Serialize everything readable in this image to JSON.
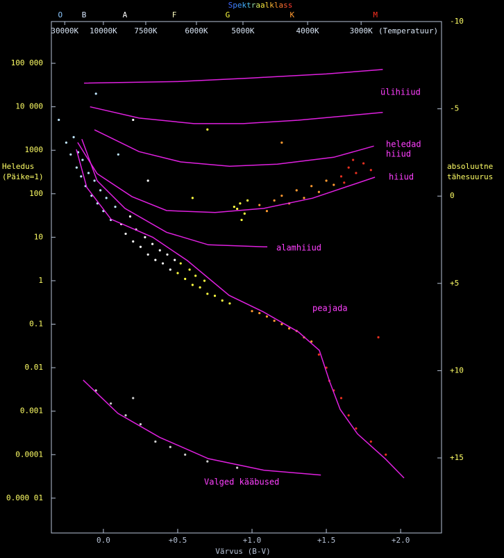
{
  "chart_data": {
    "type": "scatter",
    "title": "Spektraalklass",
    "xlabel": "Värvus (B-V)",
    "ylabel": [
      "Heledus",
      "(Päike=1)"
    ],
    "y2label": [
      "absoluutne",
      "tähesuurus"
    ],
    "xlim": [
      -0.35,
      2.275
    ],
    "xticks": [
      {
        "value": 0,
        "label": "0.0"
      },
      {
        "value": 0.5,
        "label": "+0.5"
      },
      {
        "value": 1,
        "label": "+1.0"
      },
      {
        "value": 1.5,
        "label": "+1.5"
      },
      {
        "value": 2,
        "label": "+2.0"
      }
    ],
    "ylim": [
      1.58e-06,
      912000
    ],
    "log_y": true,
    "yticks": [
      {
        "value": 100000,
        "label": "100 000"
      },
      {
        "value": 10000,
        "label": "10 000"
      },
      1000,
      100,
      10,
      1,
      0.1,
      0.01,
      0.001,
      0.0001,
      {
        "value": 1e-05,
        "label": "0.000 01"
      }
    ],
    "y2lim": [
      19.3,
      -10
    ],
    "y2ticks": [
      -10,
      -5,
      0,
      {
        "value": 5,
        "label": "+5"
      },
      {
        "value": 10,
        "label": "+10"
      },
      {
        "value": 15,
        "label": "+15"
      }
    ],
    "spectral_classes": {
      "labels": [
        "O",
        "B",
        "A",
        "F",
        "G",
        "K",
        "M"
      ],
      "x": [
        -0.29,
        -0.13,
        0.145,
        0.477,
        0.836,
        1.27,
        1.83
      ],
      "colors": [
        "#8cc8ff",
        "#d8e8ff",
        "#ffffff",
        "#ffffc0",
        "#ffff40",
        "#ff9a30",
        "#ff3020"
      ]
    },
    "temperature_axis": {
      "title": "(Temperatuur)",
      "labels": [
        "30000K",
        "10000K",
        "7500K",
        "6000K",
        "5000K",
        "4000K",
        "3000K"
      ],
      "x": [
        -0.26,
        0,
        0.285,
        0.626,
        0.939,
        1.374,
        1.734
      ]
    },
    "series": [
      {
        "color": "#bfe6ff",
        "x": [
          -0.25,
          -0.22,
          -0.2,
          -0.18,
          -0.17,
          -0.15,
          -0.14,
          -0.12,
          -0.1,
          -0.08,
          -0.06,
          -0.04,
          -0.02,
          0.0,
          0.02,
          0.05,
          0.08,
          -0.3,
          -0.05,
          0.1
        ],
        "values": [
          1500,
          800,
          2000,
          400,
          900,
          250,
          600,
          150,
          300,
          90,
          200,
          60,
          120,
          40,
          80,
          25,
          50,
          5000,
          20000,
          800
        ]
      },
      {
        "color": "#ffffff",
        "x": [
          0.12,
          0.15,
          0.18,
          0.2,
          0.22,
          0.25,
          0.28,
          0.3,
          0.33,
          0.35,
          0.38,
          0.4,
          0.43,
          0.45,
          0.48,
          0.3,
          0.2
        ],
        "values": [
          20,
          12,
          30,
          8,
          15,
          6,
          10,
          4,
          7,
          3,
          5,
          2.5,
          4,
          1.8,
          3,
          200,
          5000
        ]
      },
      {
        "color": "#ffff40",
        "x": [
          0.5,
          0.52,
          0.55,
          0.58,
          0.6,
          0.62,
          0.65,
          0.68,
          0.7,
          0.75,
          0.8,
          0.85,
          0.9,
          0.92,
          0.95,
          0.97,
          0.88,
          0.93,
          0.6,
          0.7
        ],
        "values": [
          1.5,
          2.5,
          1.1,
          1.8,
          0.8,
          1.3,
          0.7,
          1.0,
          0.5,
          0.45,
          0.35,
          0.3,
          45,
          60,
          35,
          70,
          50,
          25,
          80,
          3000
        ]
      },
      {
        "color": "#ff9a30",
        "x": [
          1.0,
          1.05,
          1.1,
          1.15,
          1.2,
          1.25,
          1.3,
          1.35,
          1.4,
          1.05,
          1.1,
          1.15,
          1.2,
          1.25,
          1.3,
          1.35,
          1.4,
          1.45,
          1.5,
          1.55,
          1.2
        ],
        "values": [
          0.2,
          0.18,
          0.15,
          0.12,
          0.1,
          0.08,
          0.07,
          0.05,
          0.04,
          55,
          40,
          70,
          90,
          60,
          120,
          80,
          150,
          110,
          200,
          160,
          1500
        ]
      },
      {
        "color": "#e83020",
        "x": [
          1.45,
          1.5,
          1.52,
          1.55,
          1.6,
          1.65,
          1.7,
          1.8,
          1.9,
          1.6,
          1.65,
          1.7,
          1.75,
          1.62,
          1.68,
          1.8,
          1.85
        ],
        "values": [
          0.02,
          0.01,
          0.005,
          0.003,
          0.002,
          0.0008,
          0.0004,
          0.0002,
          0.0001,
          250,
          400,
          300,
          500,
          180,
          600,
          350,
          0.05
        ]
      },
      {
        "color": "#d0d0d0",
        "x": [
          -0.05,
          0.05,
          0.15,
          0.25,
          0.35,
          0.45,
          0.55,
          0.7,
          0.9,
          0.2
        ],
        "values": [
          0.003,
          0.0015,
          0.0008,
          0.0005,
          0.0002,
          0.00015,
          0.0001,
          7e-05,
          5e-05,
          0.002
        ]
      }
    ],
    "curve_color": "#e020e0",
    "curves": [
      {
        "x": [
          -0.13,
          0.5,
          1.0,
          1.5,
          1.88
        ],
        "values": [
          35000,
          38000,
          46000,
          57000,
          72000
        ]
      },
      {
        "label": "ülihiiud",
        "x": [
          -0.09,
          0.24,
          0.61,
          0.94,
          1.31,
          1.88
        ],
        "values": [
          10000,
          5500,
          4100,
          4100,
          4900,
          7400
        ]
      },
      {
        "label": [
          "heledad",
          "hiiud"
        ],
        "x": [
          -0.06,
          0.24,
          0.52,
          0.85,
          1.17,
          1.55,
          1.82
        ],
        "values": [
          2950,
          930,
          540,
          430,
          480,
          690,
          1250
        ]
      },
      {
        "label": "hiiud",
        "x": [
          -0.173,
          -0.042,
          0.192,
          0.425,
          0.752,
          1.079,
          1.407,
          1.827
        ],
        "values": [
          1510,
          290,
          86,
          41,
          37,
          46,
          79,
          240
        ]
      },
      {
        "label": "alamhiiud",
        "x": [
          -0.145,
          -0.042,
          0.145,
          0.425,
          0.706,
          1.103
        ],
        "values": [
          1800,
          200,
          46,
          13,
          6.7,
          6.0
        ]
      },
      {
        "label": "peajada",
        "x": [
          -0.182,
          -0.112,
          0.051,
          0.332,
          0.565,
          0.846,
          1.079,
          1.313,
          1.453,
          1.523,
          1.593,
          1.71,
          1.897,
          2.023
        ],
        "values": [
          1050,
          140,
          26,
          10,
          2.9,
          0.46,
          0.19,
          0.066,
          0.025,
          0.0047,
          0.0011,
          0.0003,
          8e-05,
          2.9e-05
        ]
      },
      {
        "label": "Valged kääbused",
        "x": [
          -0.136,
          0.098,
          0.379,
          0.706,
          1.079,
          1.463
        ],
        "values": [
          0.0052,
          0.00089,
          0.00025,
          8.1e-05,
          4.4e-05,
          3.4e-05
        ]
      }
    ]
  }
}
